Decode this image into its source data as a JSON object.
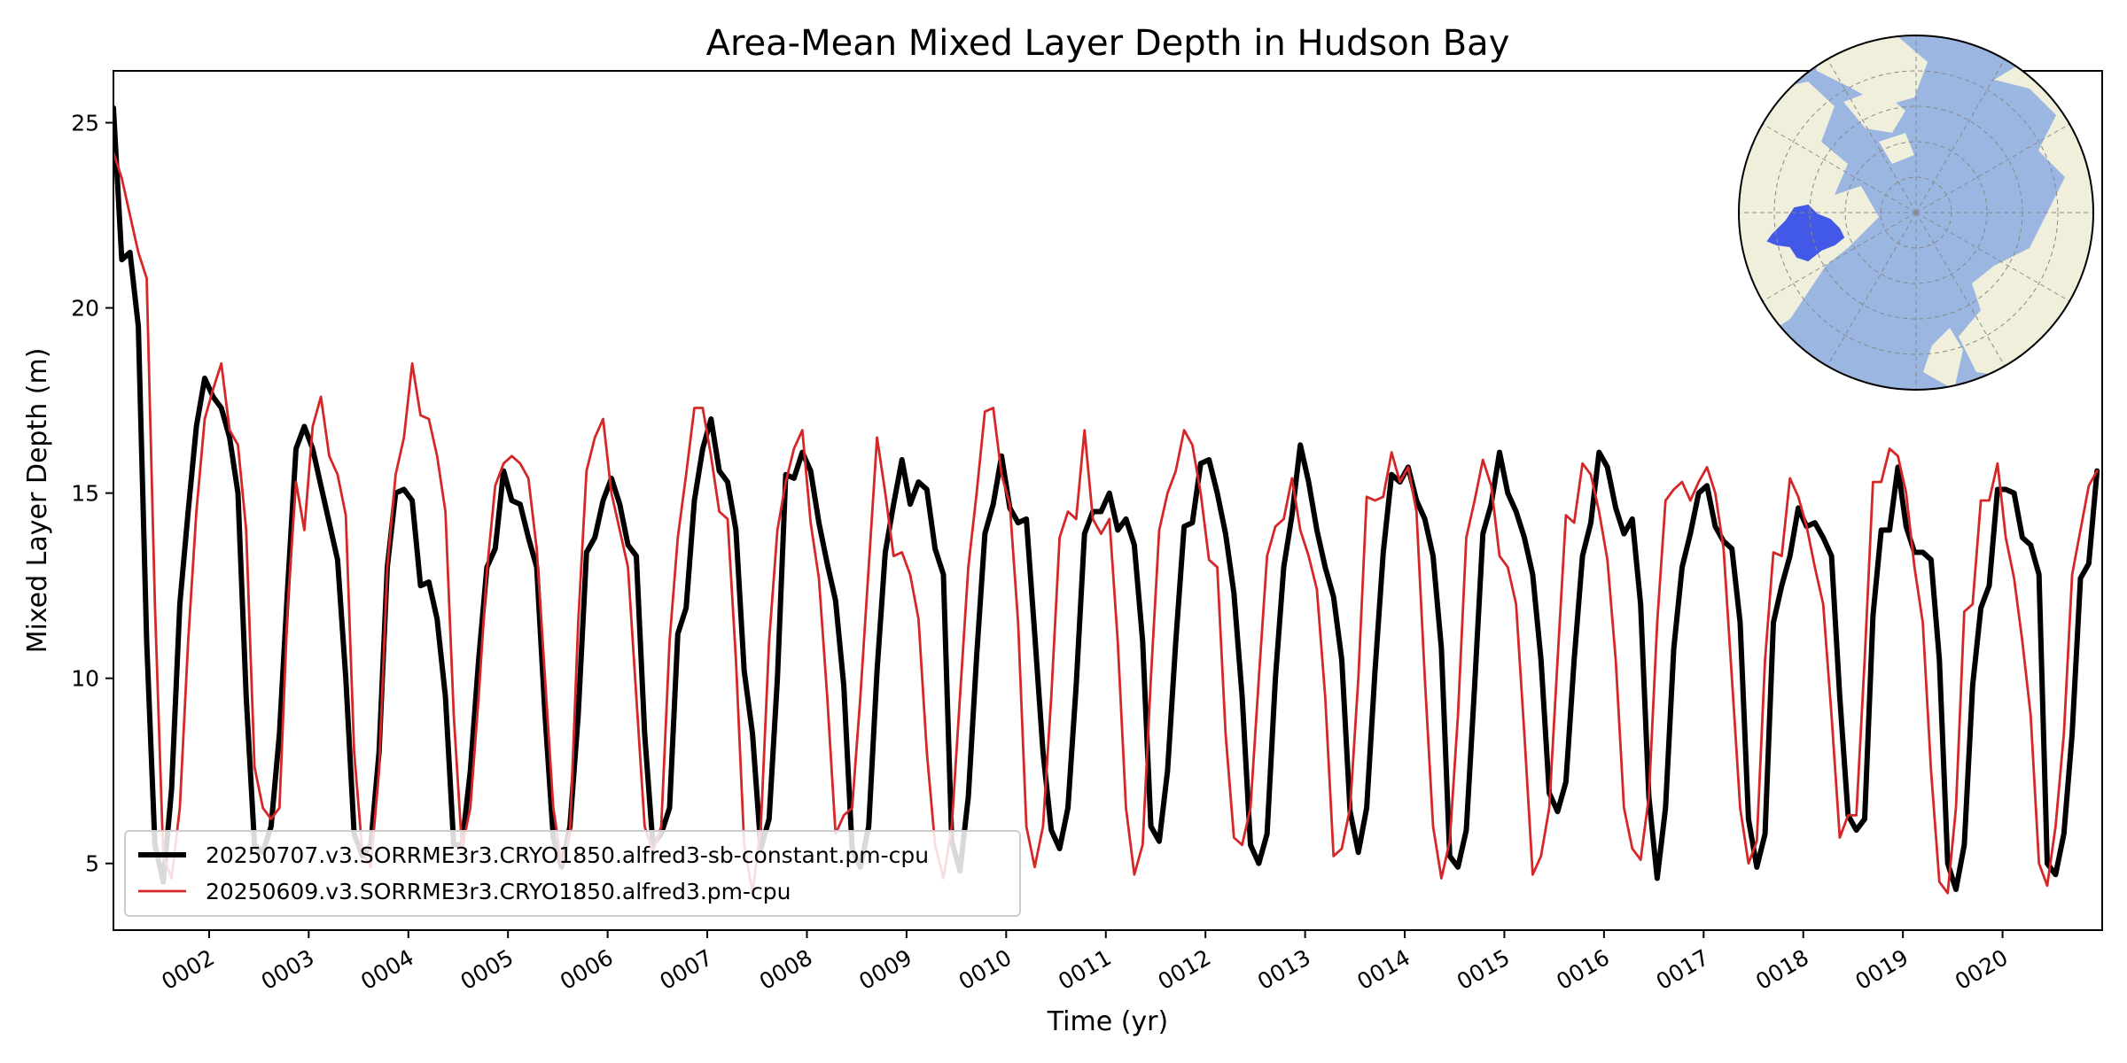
{
  "chart_data": {
    "type": "line",
    "title": "Area-Mean Mixed Layer Depth in Hudson Bay",
    "xlabel": "Time (yr)",
    "ylabel": "Mixed Layer Depth (m)",
    "xlim": [
      1.04,
      21.0
    ],
    "ylim": [
      3.2,
      26.4
    ],
    "xtick_values": [
      2,
      3,
      4,
      5,
      6,
      7,
      8,
      9,
      10,
      11,
      12,
      13,
      14,
      15,
      16,
      17,
      18,
      19,
      20
    ],
    "xtick_labels": [
      "0002",
      "0003",
      "0004",
      "0005",
      "0006",
      "0007",
      "0008",
      "0009",
      "0010",
      "0011",
      "0012",
      "0013",
      "0014",
      "0015",
      "0016",
      "0017",
      "0018",
      "0019",
      "0020"
    ],
    "ytick_values": [
      5,
      10,
      15,
      20,
      25
    ],
    "ytick_labels": [
      "5",
      "10",
      "15",
      "20",
      "25"
    ],
    "grid": false,
    "legend": {
      "location": "lower-left"
    },
    "series": [
      {
        "name": "20250707.v3.SORRME3r3.CRYO1850.alfred3-sb-constant.pm-cpu",
        "color": "#000000",
        "lineWidth": 6,
        "x_start": 1.04,
        "x_step": 0.0833,
        "values": [
          25.4,
          21.3,
          21.5,
          19.5,
          11.0,
          5.5,
          4.5,
          7.0,
          12.0,
          14.5,
          16.8,
          18.1,
          17.6,
          17.3,
          16.5,
          15.0,
          9.5,
          5.5,
          5.3,
          6.0,
          8.5,
          12.5,
          16.2,
          16.8,
          16.2,
          15.2,
          14.2,
          13.2,
          10.0,
          5.8,
          5.2,
          5.5,
          8.0,
          13.0,
          15.0,
          15.1,
          14.8,
          12.5,
          12.6,
          11.6,
          9.5,
          5.5,
          5.5,
          7.5,
          10.5,
          13.0,
          13.5,
          15.6,
          14.8,
          14.7,
          13.8,
          13.0,
          9.0,
          5.7,
          4.9,
          6.0,
          9.0,
          13.4,
          13.8,
          14.8,
          15.4,
          14.7,
          13.6,
          13.3,
          8.5,
          5.5,
          5.8,
          6.5,
          11.2,
          11.9,
          14.8,
          16.2,
          17.0,
          15.6,
          15.3,
          14.0,
          10.2,
          8.5,
          5.4,
          6.2,
          10.0,
          15.5,
          15.4,
          16.1,
          15.6,
          14.2,
          13.1,
          12.1,
          9.8,
          5.4,
          4.9,
          6.0,
          10.2,
          13.4,
          14.7,
          15.9,
          14.7,
          15.3,
          15.1,
          13.5,
          12.8,
          5.6,
          4.8,
          6.8,
          10.6,
          13.9,
          14.7,
          16.0,
          14.6,
          14.2,
          14.3,
          11.2,
          8.0,
          5.9,
          5.4,
          6.5,
          9.8,
          13.9,
          14.5,
          14.5,
          15.0,
          14.0,
          14.3,
          13.6,
          11.0,
          6.0,
          5.6,
          7.5,
          11.0,
          14.1,
          14.2,
          15.8,
          15.9,
          15.0,
          13.9,
          12.3,
          9.5,
          5.5,
          5.0,
          5.8,
          10.0,
          13.0,
          14.4,
          16.3,
          15.3,
          14.0,
          13.0,
          12.2,
          10.5,
          6.4,
          5.3,
          6.5,
          10.2,
          13.4,
          15.5,
          15.3,
          15.7,
          14.8,
          14.3,
          13.3,
          10.8,
          5.2,
          4.9,
          5.9,
          9.8,
          13.9,
          14.7,
          16.1,
          15.0,
          14.5,
          13.8,
          12.8,
          10.5,
          6.9,
          6.4,
          7.2,
          10.5,
          13.3,
          14.2,
          16.1,
          15.7,
          14.6,
          13.9,
          14.3,
          12.0,
          6.8,
          4.6,
          6.5,
          10.8,
          13.0,
          13.9,
          15.0,
          15.2,
          14.1,
          13.7,
          13.5,
          11.5,
          6.2,
          4.9,
          5.8,
          11.5,
          12.5,
          13.3,
          14.6,
          14.1,
          14.2,
          13.8,
          13.3,
          9.5,
          6.3,
          5.9,
          6.2,
          11.7,
          14.0,
          14.0,
          15.7,
          14.1,
          13.4,
          13.4,
          13.2,
          10.5,
          5.0,
          4.3,
          5.5,
          9.8,
          11.9,
          12.5,
          15.1,
          15.1,
          15.0,
          13.8,
          13.6,
          12.8,
          5.0,
          4.7,
          5.8,
          8.5,
          12.7,
          13.1,
          15.6
        ]
      },
      {
        "name": "20250609.v3.SORRME3r3.CRYO1850.alfred3.pm-cpu",
        "color": "#d62728",
        "lineWidth": 2.8,
        "x_start": 1.04,
        "x_step": 0.0833,
        "values": [
          24.2,
          23.5,
          22.5,
          21.5,
          20.8,
          12.0,
          5.2,
          4.6,
          6.5,
          11.0,
          14.5,
          17.0,
          17.8,
          18.5,
          16.7,
          16.3,
          14.0,
          7.6,
          6.5,
          6.2,
          6.5,
          12.0,
          15.3,
          14.0,
          16.8,
          17.6,
          16.0,
          15.5,
          14.4,
          8.0,
          5.3,
          4.9,
          7.5,
          13.0,
          15.5,
          16.5,
          18.5,
          17.1,
          17.0,
          16.0,
          14.5,
          9.0,
          5.4,
          6.5,
          9.5,
          12.9,
          15.2,
          15.8,
          16.0,
          15.8,
          15.4,
          13.5,
          10.0,
          6.5,
          5.0,
          5.8,
          11.5,
          15.6,
          16.5,
          17.0,
          15.0,
          14.0,
          13.0,
          9.5,
          6.0,
          5.3,
          6.0,
          11.0,
          13.8,
          15.5,
          17.3,
          17.3,
          16.0,
          14.5,
          14.3,
          10.5,
          5.5,
          4.2,
          6.0,
          11.0,
          14.0,
          15.3,
          16.2,
          16.7,
          14.2,
          12.7,
          9.5,
          5.8,
          6.3,
          6.5,
          9.5,
          13.0,
          16.5,
          15.0,
          13.3,
          13.4,
          12.8,
          11.6,
          8.0,
          5.5,
          4.6,
          6.0,
          9.5,
          13.0,
          15.0,
          17.2,
          17.3,
          15.5,
          14.7,
          11.5,
          6.0,
          4.9,
          6.0,
          9.5,
          13.8,
          14.5,
          14.3,
          16.7,
          14.3,
          13.9,
          14.3,
          11.0,
          6.5,
          4.7,
          5.5,
          10.0,
          14.0,
          15.0,
          15.6,
          16.7,
          16.3,
          15.0,
          13.2,
          13.0,
          8.5,
          5.7,
          5.5,
          6.5,
          10.0,
          13.3,
          14.1,
          14.3,
          15.4,
          14.0,
          13.3,
          12.4,
          9.5,
          5.2,
          5.4,
          6.5,
          10.0,
          14.9,
          14.8,
          14.9,
          16.1,
          15.3,
          15.7,
          14.5,
          10.0,
          6.0,
          4.6,
          5.6,
          9.0,
          13.8,
          14.8,
          15.9,
          15.2,
          13.3,
          13.0,
          12.0,
          8.5,
          4.7,
          5.2,
          6.5,
          10.5,
          14.4,
          14.2,
          15.8,
          15.5,
          14.5,
          13.2,
          10.5,
          6.5,
          5.4,
          5.1,
          6.8,
          11.5,
          14.8,
          15.1,
          15.3,
          14.8,
          15.3,
          15.7,
          15.0,
          13.5,
          10.0,
          6.5,
          5.0,
          5.6,
          10.5,
          13.4,
          13.3,
          15.4,
          14.9,
          14.1,
          13.0,
          12.0,
          9.0,
          5.7,
          6.3,
          6.3,
          10.5,
          15.3,
          15.3,
          16.2,
          16.0,
          15.0,
          13.0,
          11.5,
          7.5,
          4.5,
          4.2,
          6.5,
          11.8,
          12.0,
          14.8,
          14.8,
          15.8,
          13.8,
          12.7,
          11.0,
          9.0,
          5.0,
          4.4,
          6.0,
          8.5,
          12.8,
          14.0,
          15.2,
          15.6
        ]
      }
    ]
  },
  "inset_map": {
    "ocean_color": "#9ab6e1",
    "land_color": "#efefdc",
    "region_color": "#4159e6"
  }
}
